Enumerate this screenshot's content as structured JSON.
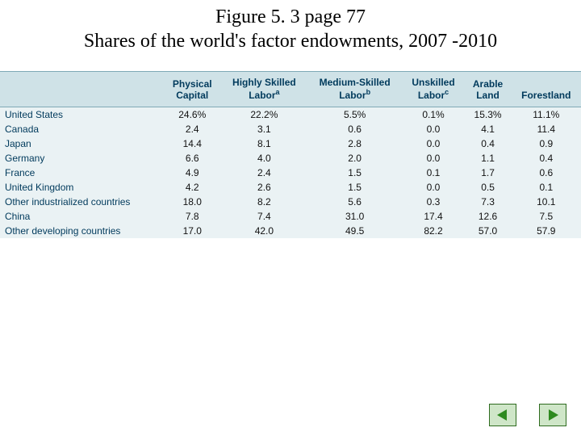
{
  "title": {
    "line1": "Figure 5. 3 page 77",
    "line2": "Shares of the world's factor endowments, 2007 -2010"
  },
  "table": {
    "type": "table",
    "background_color": "#eaf2f4",
    "header_bg": "#cfe2e7",
    "header_text_color": "#003a5c",
    "border_color": "#7fa9b6",
    "country_text_color": "#003a5c",
    "cell_text_color": "#111111",
    "font_family": "Arial",
    "header_fontsize": 12,
    "body_fontsize": 12,
    "columns": [
      {
        "label_line1": "",
        "label_line2": "",
        "align": "left"
      },
      {
        "label_line1": "Physical",
        "label_line2": "Capital",
        "align": "center"
      },
      {
        "label_line1": "Highly Skilled",
        "label_line2": "Labor",
        "sup": "a",
        "align": "center"
      },
      {
        "label_line1": "Medium-Skilled",
        "label_line2": "Labor",
        "sup": "b",
        "align": "center"
      },
      {
        "label_line1": "Unskilled",
        "label_line2": "Labor",
        "sup": "c",
        "align": "center"
      },
      {
        "label_line1": "Arable",
        "label_line2": "Land",
        "align": "center"
      },
      {
        "label_line1": "",
        "label_line2": "Forestland",
        "align": "center"
      }
    ],
    "rows": [
      {
        "country": "United States",
        "values": [
          "24.6%",
          "22.2%",
          "5.5%",
          "0.1%",
          "15.3%",
          "11.1%"
        ]
      },
      {
        "country": "Canada",
        "values": [
          "2.4",
          "3.1",
          "0.6",
          "0.0",
          "4.1",
          "11.4"
        ]
      },
      {
        "country": "Japan",
        "values": [
          "14.4",
          "8.1",
          "2.8",
          "0.0",
          "0.4",
          "0.9"
        ]
      },
      {
        "country": "Germany",
        "values": [
          "6.6",
          "4.0",
          "2.0",
          "0.0",
          "1.1",
          "0.4"
        ]
      },
      {
        "country": "France",
        "values": [
          "4.9",
          "2.4",
          "1.5",
          "0.1",
          "1.7",
          "0.6"
        ]
      },
      {
        "country": "United Kingdom",
        "values": [
          "4.2",
          "2.6",
          "1.5",
          "0.0",
          "0.5",
          "0.1"
        ]
      },
      {
        "country": "Other industrialized countries",
        "values": [
          "18.0",
          "8.2",
          "5.6",
          "0.3",
          "7.3",
          "10.1"
        ]
      },
      {
        "country": "China",
        "values": [
          "7.8",
          "7.4",
          "31.0",
          "17.4",
          "12.6",
          "7.5"
        ]
      },
      {
        "country": "Other developing countries",
        "values": [
          "17.0",
          "42.0",
          "49.5",
          "82.2",
          "57.0",
          "57.9"
        ]
      }
    ]
  },
  "nav": {
    "prev_color": "#2e8a1f",
    "next_color": "#2e8a1f",
    "bg_color": "#cfe6c8",
    "border_color": "#2e6b1f"
  }
}
